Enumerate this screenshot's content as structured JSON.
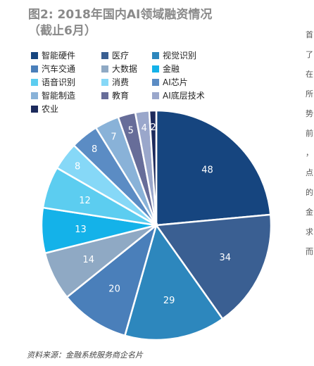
{
  "page": {
    "title_line1": "图2: 2018年国内AI领域融资情况",
    "title_line2": "（截止6月）",
    "source": "资料来源：金融系统服务商企名片",
    "edge_chars": [
      "首",
      "了",
      "在",
      "所",
      "势",
      "前",
      "，",
      "点",
      "的",
      "金",
      "求",
      "而"
    ]
  },
  "chart_data": {
    "type": "pie",
    "title": "2018年国内AI领域融资情况（截止6月）",
    "legend_position": "top",
    "categories": [
      "智能硬件",
      "医疗",
      "视觉识别",
      "汽车交通",
      "大数据",
      "金融",
      "语音识别",
      "消费",
      "AI芯片",
      "智能制造",
      "教育",
      "AI底层技术",
      "农业"
    ],
    "values": [
      48,
      34,
      29,
      20,
      14,
      13,
      12,
      8,
      8,
      7,
      5,
      4,
      2
    ],
    "colors": [
      "#16457f",
      "#3a5f92",
      "#2d87bd",
      "#4a7fba",
      "#8fa9c4",
      "#14b2e9",
      "#5ccdf0",
      "#86d8f7",
      "#5b8cc4",
      "#89b2d8",
      "#676d99",
      "#9aa7cb",
      "#1c2a5c"
    ]
  }
}
